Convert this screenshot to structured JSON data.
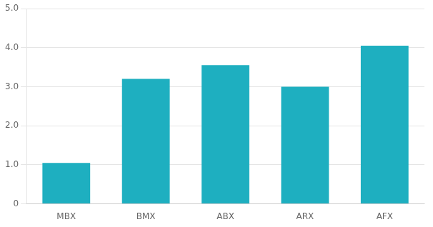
{
  "chart_data": {
    "type": "bar",
    "categories": [
      "MBX",
      "BMX",
      "ABX",
      "ARX",
      "AFX"
    ],
    "values": [
      1.05,
      3.2,
      3.55,
      3.0,
      4.05
    ],
    "color": "#1EAFC0",
    "ylim": [
      0,
      5.0
    ],
    "yticks": [
      0,
      {
        "value": 1.0,
        "label": "1.0"
      },
      {
        "value": 2.0,
        "label": "2.0"
      },
      {
        "value": 3.0,
        "label": "3.0"
      },
      {
        "value": 4.0,
        "label": "4.0"
      },
      {
        "value": 5.0,
        "label": "5.0"
      }
    ],
    "grid": true
  }
}
